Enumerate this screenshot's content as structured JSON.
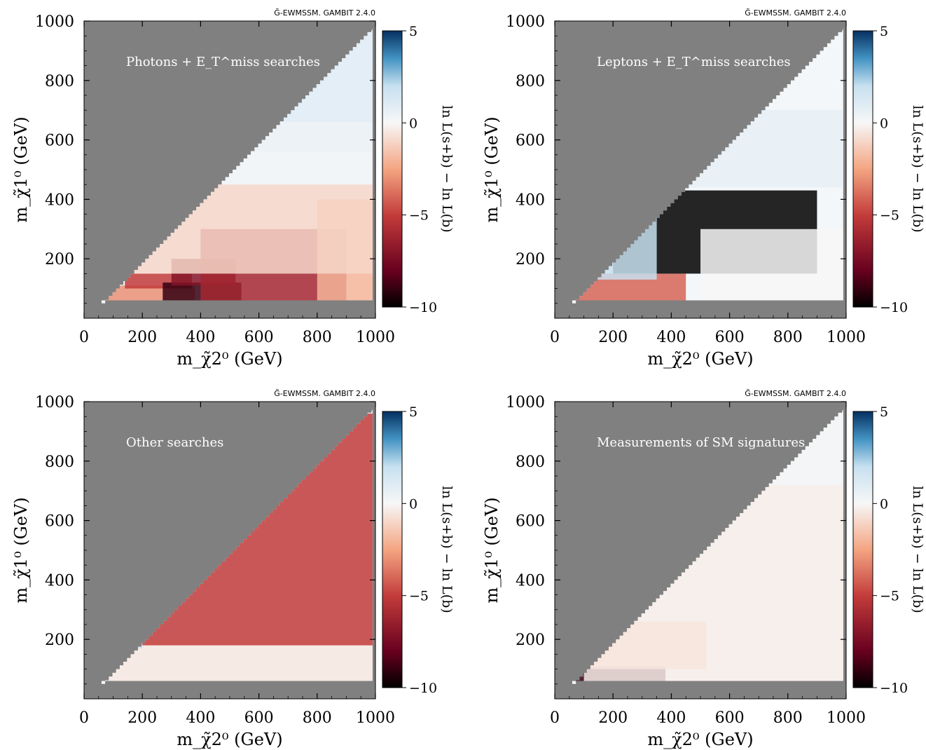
{
  "chart_data": [
    {
      "type": "heatmap",
      "panel_label": "Photons + E_T^miss searches",
      "header": "G̃-EWMSSM. GAMBIT 2.4.0",
      "xlabel": "m_χ̃2⁰ (GeV)",
      "ylabel": "m_χ̃1⁰ (GeV)",
      "xlim": [
        0,
        1000
      ],
      "ylim": [
        0,
        1000
      ],
      "xticks": [
        0,
        200,
        400,
        600,
        800,
        1000
      ],
      "yticks": [
        200,
        400,
        600,
        800,
        1000
      ],
      "colorbar": {
        "label": "ln L(s+b) − ln L(b)",
        "range": [
          -10,
          5
        ],
        "ticks": [
          5,
          0,
          -5,
          -10
        ]
      },
      "bands": [
        {
          "x": [
            70,
            380
          ],
          "y": [
            60,
            110
          ],
          "value": -3
        },
        {
          "x": [
            140,
            370
          ],
          "y": [
            100,
            150
          ],
          "value": -5
        },
        {
          "x": [
            270,
            540
          ],
          "y": [
            60,
            120
          ],
          "value": -9
        },
        {
          "x": [
            300,
            520
          ],
          "y": [
            110,
            200
          ],
          "value": -7
        },
        {
          "x": [
            400,
            900
          ],
          "y": [
            60,
            300
          ],
          "value": -6
        },
        {
          "x": [
            800,
            1000
          ],
          "y": [
            60,
            400
          ],
          "value": -2
        },
        {
          "x": [
            100,
            1000
          ],
          "y": [
            150,
            450
          ],
          "value": -1
        },
        {
          "x": [
            200,
            1000
          ],
          "y": [
            450,
            560
          ],
          "value": 0.3
        },
        {
          "x": [
            400,
            1000
          ],
          "y": [
            560,
            660
          ],
          "value": 0.5
        },
        {
          "x": [
            600,
            1000
          ],
          "y": [
            660,
            960
          ],
          "value": 1
        }
      ]
    },
    {
      "type": "heatmap",
      "panel_label": "Leptons + E_T^miss searches",
      "header": "G̃-EWMSSM. GAMBIT 2.4.0",
      "xlabel": "m_χ̃2⁰ (GeV)",
      "ylabel": "m_χ̃1⁰ (GeV)",
      "xlim": [
        0,
        1000
      ],
      "ylim": [
        0,
        1000
      ],
      "xticks": [
        0,
        200,
        400,
        600,
        800,
        1000
      ],
      "yticks": [
        200,
        400,
        600,
        800,
        1000
      ],
      "colorbar": {
        "label": "ln L(s+b) − ln L(b)",
        "range": [
          -10,
          5
        ],
        "ticks": [
          5,
          0,
          -5,
          -10
        ]
      },
      "bands": [
        {
          "x": [
            60,
            450
          ],
          "y": [
            60,
            150
          ],
          "value": -4
        },
        {
          "x": [
            200,
            900
          ],
          "y": [
            150,
            430
          ],
          "value": -10
        },
        {
          "x": [
            120,
            350
          ],
          "y": [
            130,
            400
          ],
          "value": 2
        },
        {
          "x": [
            350,
            1000
          ],
          "y": [
            440,
            700
          ],
          "value": 0.7
        },
        {
          "x": [
            500,
            1000
          ],
          "y": [
            60,
            300
          ],
          "value": 0
        }
      ]
    },
    {
      "type": "heatmap",
      "panel_label": "Other searches",
      "header": "G̃-EWMSSM. GAMBIT 2.4.0",
      "xlabel": "m_χ̃2⁰ (GeV)",
      "ylabel": "m_χ̃1⁰ (GeV)",
      "xlim": [
        0,
        1000
      ],
      "ylim": [
        0,
        1000
      ],
      "xticks": [
        0,
        200,
        400,
        600,
        800,
        1000
      ],
      "yticks": [
        200,
        400,
        600,
        800,
        1000
      ],
      "colorbar": {
        "label": "ln L(s+b) − ln L(b)",
        "range": [
          -10,
          5
        ],
        "ticks": [
          5,
          0,
          -5,
          -10
        ]
      },
      "bands": [
        {
          "x": [
            60,
            1000
          ],
          "y": [
            60,
            200
          ],
          "value": -0.5
        },
        {
          "x": [
            180,
            1000
          ],
          "y": [
            180,
            960
          ],
          "value": -5
        },
        {
          "x": [
            140,
            200
          ],
          "y": [
            170,
            200
          ],
          "value": 2
        }
      ]
    },
    {
      "type": "heatmap",
      "panel_label": "Measurements of SM signatures",
      "header": "G̃-EWMSSM. GAMBIT 2.4.0",
      "xlabel": "m_χ̃2⁰ (GeV)",
      "ylabel": "m_χ̃1⁰ (GeV)",
      "xlim": [
        0,
        1000
      ],
      "ylim": [
        0,
        1000
      ],
      "xticks": [
        0,
        200,
        400,
        600,
        800,
        1000
      ],
      "yticks": [
        200,
        400,
        600,
        800,
        1000
      ],
      "colorbar": {
        "label": "ln L(s+b) − ln L(b)",
        "range": [
          -10,
          5
        ],
        "ticks": [
          5,
          0,
          -5,
          -10
        ]
      },
      "bands": [
        {
          "x": [
            60,
            380
          ],
          "y": [
            60,
            110
          ],
          "value": -9
        },
        {
          "x": [
            100,
            520
          ],
          "y": [
            100,
            260
          ],
          "value": -2
        },
        {
          "x": [
            100,
            1000
          ],
          "y": [
            60,
            720
          ],
          "value": -0.3
        },
        {
          "x": [
            700,
            1000
          ],
          "y": [
            720,
            960
          ],
          "value": 0.2
        }
      ]
    }
  ]
}
